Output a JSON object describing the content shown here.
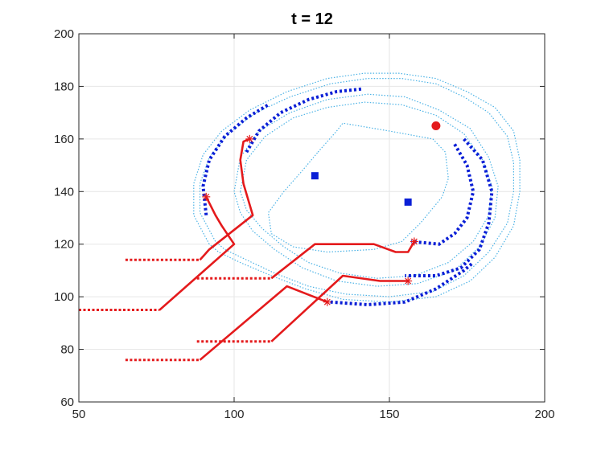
{
  "chart_data": {
    "type": "line",
    "title": "t = 12",
    "xlabel": "",
    "ylabel": "",
    "xlim": [
      50,
      200
    ],
    "ylim": [
      60,
      200
    ],
    "xticks": [
      50,
      100,
      150,
      200
    ],
    "yticks": [
      60,
      80,
      100,
      120,
      140,
      160,
      180,
      200
    ],
    "grid": true,
    "legend": "none",
    "colors": {
      "contour": "#4db3e6",
      "boundary": "#0a1fd6",
      "path": "#e41a1c",
      "axis": "#262626",
      "grid": "#e6e6e6"
    },
    "contours": [
      [
        [
          92,
          120
        ],
        [
          87,
          131
        ],
        [
          87,
          143
        ],
        [
          90,
          154
        ],
        [
          96,
          163
        ],
        [
          105,
          171
        ],
        [
          117,
          178
        ],
        [
          130,
          183
        ],
        [
          142,
          185
        ],
        [
          153,
          185
        ],
        [
          165,
          183
        ],
        [
          175,
          178
        ],
        [
          184,
          172
        ],
        [
          190,
          163
        ],
        [
          192,
          152
        ],
        [
          192,
          140
        ],
        [
          190,
          127
        ],
        [
          184,
          115
        ],
        [
          176,
          106
        ],
        [
          165,
          100
        ],
        [
          150,
          98
        ],
        [
          135,
          99
        ],
        [
          123,
          103
        ],
        [
          112,
          108
        ],
        [
          102,
          113
        ],
        [
          95,
          117
        ],
        [
          92,
          120
        ]
      ],
      [
        [
          94,
          121
        ],
        [
          89,
          132
        ],
        [
          89,
          143
        ],
        [
          92,
          153
        ],
        [
          98,
          162
        ],
        [
          107,
          170
        ],
        [
          118,
          176
        ],
        [
          131,
          181
        ],
        [
          143,
          183
        ],
        [
          154,
          183
        ],
        [
          165,
          181
        ],
        [
          174,
          176
        ],
        [
          182,
          170
        ],
        [
          188,
          161
        ],
        [
          190,
          151
        ],
        [
          190,
          140
        ],
        [
          188,
          128
        ],
        [
          182,
          117
        ],
        [
          174,
          108
        ],
        [
          164,
          102
        ],
        [
          150,
          100
        ],
        [
          136,
          101
        ],
        [
          124,
          104
        ],
        [
          113,
          109
        ],
        [
          104,
          114
        ],
        [
          97,
          118
        ],
        [
          94,
          121
        ]
      ],
      [
        [
          102,
          140
        ],
        [
          104,
          152
        ],
        [
          110,
          161
        ],
        [
          119,
          168
        ],
        [
          130,
          172
        ],
        [
          142,
          174
        ],
        [
          154,
          173
        ],
        [
          165,
          169
        ],
        [
          174,
          162
        ],
        [
          180,
          152
        ],
        [
          183,
          142
        ],
        [
          182,
          131
        ],
        [
          177,
          121
        ],
        [
          169,
          113
        ],
        [
          158,
          108
        ],
        [
          146,
          107
        ],
        [
          134,
          109
        ],
        [
          124,
          113
        ],
        [
          116,
          119
        ],
        [
          109,
          126
        ],
        [
          104,
          133
        ],
        [
          102,
          140
        ]
      ],
      [
        [
          100,
          140
        ],
        [
          102,
          153
        ],
        [
          108,
          163
        ],
        [
          118,
          170
        ],
        [
          130,
          175
        ],
        [
          143,
          177
        ],
        [
          155,
          176
        ],
        [
          166,
          171
        ],
        [
          176,
          164
        ],
        [
          182,
          153
        ],
        [
          185,
          142
        ],
        [
          184,
          130
        ],
        [
          179,
          119
        ],
        [
          171,
          110
        ],
        [
          159,
          105
        ],
        [
          146,
          104
        ],
        [
          133,
          106
        ],
        [
          122,
          111
        ],
        [
          113,
          118
        ],
        [
          106,
          125
        ],
        [
          102,
          132
        ],
        [
          100,
          140
        ]
      ],
      [
        [
          127,
          155
        ],
        [
          133,
          163
        ],
        [
          135,
          166
        ],
        [
          150,
          163
        ],
        [
          164,
          160
        ],
        [
          168,
          155
        ],
        [
          169,
          145
        ],
        [
          167,
          138
        ],
        [
          160,
          128
        ],
        [
          154,
          121
        ],
        [
          145,
          118
        ],
        [
          130,
          117
        ],
        [
          119,
          119
        ],
        [
          112,
          124
        ],
        [
          111,
          132
        ],
        [
          116,
          140
        ],
        [
          122,
          148
        ],
        [
          127,
          155
        ]
      ]
    ],
    "boundary_segments": [
      [
        [
          91,
          131
        ],
        [
          90,
          142
        ],
        [
          92,
          152
        ],
        [
          97,
          161
        ],
        [
          104,
          168
        ],
        [
          111,
          173
        ]
      ],
      [
        [
          104,
          155
        ],
        [
          108,
          163
        ],
        [
          115,
          170
        ],
        [
          124,
          175
        ],
        [
          133,
          178
        ],
        [
          141,
          179
        ]
      ],
      [
        [
          171,
          158
        ],
        [
          175,
          150
        ],
        [
          177,
          140
        ],
        [
          175,
          130
        ],
        [
          171,
          124
        ],
        [
          166,
          120
        ],
        [
          157,
          121
        ]
      ],
      [
        [
          174,
          160
        ],
        [
          180,
          152
        ],
        [
          183,
          140
        ],
        [
          182,
          128
        ],
        [
          179,
          118
        ],
        [
          173,
          111
        ],
        [
          165,
          108
        ],
        [
          155,
          108
        ]
      ],
      [
        [
          131,
          98
        ],
        [
          143,
          97
        ],
        [
          155,
          98
        ],
        [
          165,
          103
        ],
        [
          174,
          110
        ],
        [
          177,
          113
        ]
      ]
    ],
    "paths": [
      [
        [
          65,
          114
        ],
        [
          88,
          114
        ],
        [
          89,
          114
        ]
      ],
      [
        [
          89,
          114
        ],
        [
          92,
          118
        ],
        [
          106,
          131
        ],
        [
          103,
          143
        ],
        [
          102,
          152
        ],
        [
          103,
          159
        ],
        [
          105,
          160
        ]
      ],
      [
        [
          50,
          95
        ],
        [
          75,
          95
        ],
        [
          76,
          95
        ]
      ],
      [
        [
          76,
          95
        ],
        [
          100,
          120
        ],
        [
          96,
          127
        ],
        [
          94,
          131
        ],
        [
          91,
          138
        ]
      ],
      [
        [
          88,
          107
        ],
        [
          111,
          107
        ],
        [
          112,
          107
        ]
      ],
      [
        [
          112,
          107
        ],
        [
          126,
          120
        ],
        [
          145,
          120
        ],
        [
          152,
          117
        ],
        [
          156,
          117
        ],
        [
          158,
          121
        ]
      ],
      [
        [
          88,
          83
        ],
        [
          111,
          83
        ],
        [
          112,
          83
        ]
      ],
      [
        [
          112,
          83
        ],
        [
          135,
          108
        ],
        [
          147,
          106
        ],
        [
          156,
          106
        ]
      ],
      [
        [
          65,
          76
        ],
        [
          88,
          76
        ],
        [
          89,
          76
        ]
      ],
      [
        [
          89,
          76
        ],
        [
          117,
          104
        ],
        [
          130,
          98
        ]
      ]
    ],
    "path_style": [
      "dotted",
      "solid",
      "dotted",
      "solid",
      "dotted",
      "solid",
      "dotted",
      "solid",
      "dotted",
      "solid"
    ],
    "star_markers": [
      [
        105,
        160
      ],
      [
        91,
        138
      ],
      [
        158,
        121
      ],
      [
        156,
        106
      ],
      [
        130,
        98
      ]
    ],
    "square_markers": [
      [
        126,
        146
      ],
      [
        156,
        136
      ]
    ],
    "target_marker": [
      165,
      165
    ]
  }
}
